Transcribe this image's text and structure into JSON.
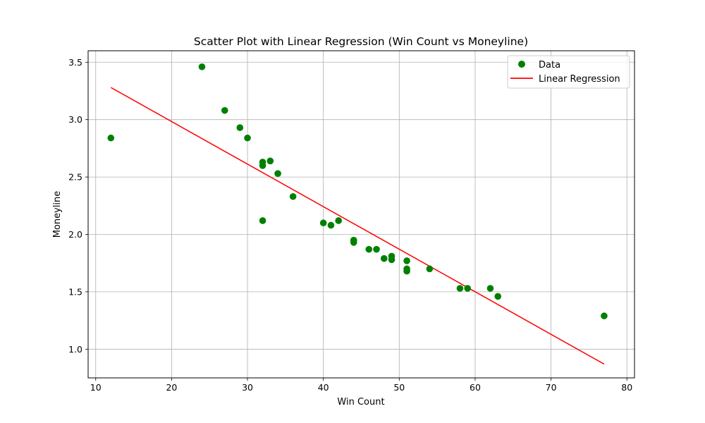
{
  "chart_data": {
    "type": "scatter",
    "title": "Scatter Plot with Linear Regression (Win Count vs Moneyline)",
    "xlabel": "Win Count",
    "ylabel": "Moneyline",
    "xlim": [
      9,
      81
    ],
    "ylim": [
      0.75,
      3.6
    ],
    "xticks": [
      10,
      20,
      30,
      40,
      50,
      60,
      70,
      80
    ],
    "yticks": [
      1.0,
      1.5,
      2.0,
      2.5,
      3.0,
      3.5
    ],
    "grid": true,
    "legend_position": "top-right",
    "series": [
      {
        "name": "Data",
        "kind": "scatter",
        "color": "#008000",
        "points": [
          {
            "x": 12,
            "y": 2.84
          },
          {
            "x": 24,
            "y": 3.46
          },
          {
            "x": 27,
            "y": 3.08
          },
          {
            "x": 29,
            "y": 2.93
          },
          {
            "x": 30,
            "y": 2.84
          },
          {
            "x": 32,
            "y": 2.63
          },
          {
            "x": 32,
            "y": 2.6
          },
          {
            "x": 32,
            "y": 2.12
          },
          {
            "x": 33,
            "y": 2.64
          },
          {
            "x": 34,
            "y": 2.53
          },
          {
            "x": 36,
            "y": 2.33
          },
          {
            "x": 40,
            "y": 2.1
          },
          {
            "x": 41,
            "y": 2.08
          },
          {
            "x": 42,
            "y": 2.12
          },
          {
            "x": 44,
            "y": 1.95
          },
          {
            "x": 44,
            "y": 1.93
          },
          {
            "x": 46,
            "y": 1.87
          },
          {
            "x": 47,
            "y": 1.87
          },
          {
            "x": 48,
            "y": 1.79
          },
          {
            "x": 49,
            "y": 1.81
          },
          {
            "x": 49,
            "y": 1.78
          },
          {
            "x": 51,
            "y": 1.77
          },
          {
            "x": 51,
            "y": 1.7
          },
          {
            "x": 51,
            "y": 1.68
          },
          {
            "x": 54,
            "y": 1.7
          },
          {
            "x": 58,
            "y": 1.53
          },
          {
            "x": 59,
            "y": 1.53
          },
          {
            "x": 62,
            "y": 1.53
          },
          {
            "x": 63,
            "y": 1.46
          },
          {
            "x": 77,
            "y": 1.29
          }
        ]
      },
      {
        "name": "Linear Regression",
        "kind": "line",
        "color": "#ff0000",
        "points": [
          {
            "x": 12,
            "y": 3.28
          },
          {
            "x": 77,
            "y": 0.87
          }
        ]
      }
    ]
  }
}
